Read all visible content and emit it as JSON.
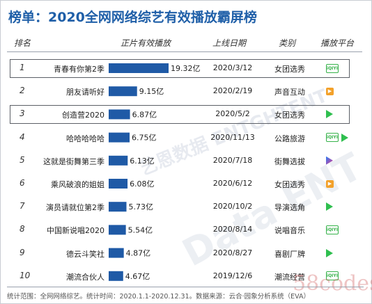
{
  "title": "榜单：2020全网网络综艺有效播放霸屏榜",
  "headers": {
    "rank": "排名",
    "name": "",
    "plays": "正片有效播放",
    "date": "上线日期",
    "category": "类别",
    "platform": "播放平台"
  },
  "platform_icons": {
    "iqiyi": "iqiyi-logo-icon",
    "mango": "mango-tv-logo-icon",
    "tencent": "tencent-video-play-icon",
    "youku": "youku-logo-icon"
  },
  "colors": {
    "title": "#1f5fa8",
    "bar": "#1f5aa6"
  },
  "watermarks": {
    "brand": "艺恩数据",
    "sub": "ENTGHTENT",
    "big": "Data ENT",
    "site": "58codes"
  },
  "footer": "统计范围：全网网络综艺。统计时间：2020.1.1-2020.12.31。数据来源：云合·园象分析系统（EVA）",
  "chart_data": {
    "type": "bar",
    "orientation": "horizontal",
    "title": "榜单：2020全网网络综艺有效播放霸屏榜",
    "unit": "亿",
    "categories": [
      "青春有你第2季",
      "朋友请听好",
      "创造营2020",
      "哈哈哈哈哈",
      "这就是街舞第三季",
      "乘风破浪的姐姐",
      "演员请就位第2季",
      "中国新说唱2020",
      "德云斗笑社",
      "潮流合伙人"
    ],
    "values": [
      19.32,
      9.15,
      6.87,
      6.75,
      6.13,
      6.08,
      5.73,
      5.54,
      4.87,
      4.67
    ],
    "value_labels": [
      "19.32亿",
      "9.15亿",
      "6.87亿",
      "6.75亿",
      "6.13亿",
      "6.08亿",
      "5.73亿",
      "5.54亿",
      "4.87亿",
      "4.67亿"
    ],
    "rows": [
      {
        "rank": "1",
        "name": "青春有你第2季",
        "value": 19.32,
        "label": "19.32亿",
        "date": "2020/3/12",
        "category": "女团选秀",
        "platforms": [
          "iqiyi"
        ],
        "highlight": true
      },
      {
        "rank": "2",
        "name": "朋友请听好",
        "value": 9.15,
        "label": "9.15亿",
        "date": "2020/2/19",
        "category": "声音互动",
        "platforms": [
          "mango"
        ],
        "highlight": false
      },
      {
        "rank": "3",
        "name": "创造营2020",
        "value": 6.87,
        "label": "6.87亿",
        "date": "2020/5/2",
        "category": "女团选秀",
        "platforms": [
          "tencent"
        ],
        "highlight": true
      },
      {
        "rank": "4",
        "name": "哈哈哈哈哈",
        "value": 6.75,
        "label": "6.75亿",
        "date": "2020/11/13",
        "category": "公路旅游",
        "platforms": [
          "iqiyi",
          "tencent"
        ],
        "highlight": false
      },
      {
        "rank": "5",
        "name": "这就是街舞第三季",
        "value": 6.13,
        "label": "6.13亿",
        "date": "2020/7/18",
        "category": "街舞选拔",
        "platforms": [
          "youku"
        ],
        "highlight": false
      },
      {
        "rank": "6",
        "name": "乘风破浪的姐姐",
        "value": 6.08,
        "label": "6.08亿",
        "date": "2020/6/12",
        "category": "女团选秀",
        "platforms": [
          "mango"
        ],
        "highlight": false
      },
      {
        "rank": "7",
        "name": "演员请就位第2季",
        "value": 5.73,
        "label": "5.73亿",
        "date": "2020/10/2",
        "category": "导演选角",
        "platforms": [
          "tencent"
        ],
        "highlight": false
      },
      {
        "rank": "8",
        "name": "中国新说唱2020",
        "value": 5.54,
        "label": "5.54亿",
        "date": "2020/8/14",
        "category": "说唱音乐",
        "platforms": [
          "iqiyi"
        ],
        "highlight": false
      },
      {
        "rank": "9",
        "name": "德云斗笑社",
        "value": 4.87,
        "label": "4.87亿",
        "date": "2020/8/27",
        "category": "喜剧厂牌",
        "platforms": [
          "tencent"
        ],
        "highlight": false
      },
      {
        "rank": "10",
        "name": "潮流合伙人",
        "value": 4.67,
        "label": "4.67亿",
        "date": "2019/12/6",
        "category": "潮流经营",
        "platforms": [
          "iqiyi"
        ],
        "highlight": false
      }
    ],
    "xlim": [
      0,
      19.32
    ],
    "grid": false,
    "legend": "none"
  }
}
